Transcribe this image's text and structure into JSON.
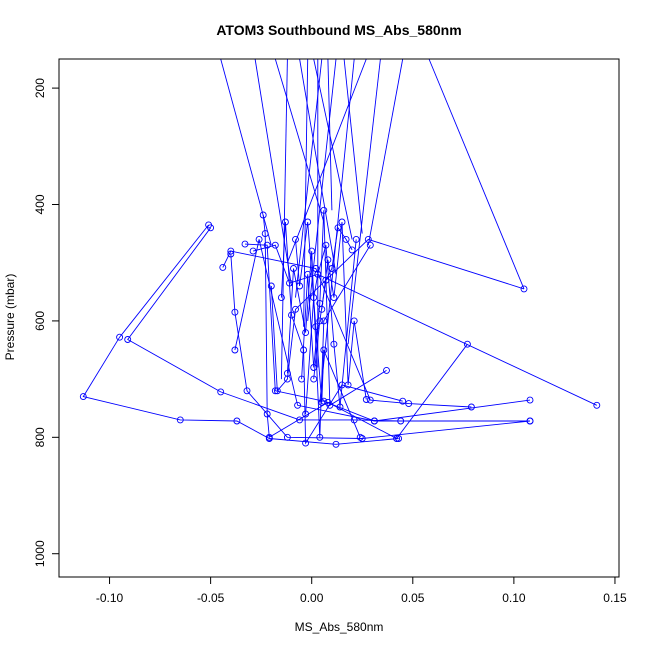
{
  "chart_data": {
    "type": "scatter",
    "title": "ATOM3 Southbound MS_Abs_580nm",
    "xlabel": "MS_Abs_580nm",
    "ylabel": "Pressure (mbar)",
    "xlim": [
      -0.125,
      0.152
    ],
    "ylim": [
      1040,
      150
    ],
    "y_reversed": true,
    "grid": false,
    "xticks": [
      -0.1,
      -0.05,
      0.0,
      0.05,
      0.1,
      0.15
    ],
    "xtick_labels": [
      "-0.10",
      "-0.05",
      "0.00",
      "0.05",
      "0.10",
      "0.15"
    ],
    "yticks": [
      200,
      400,
      600,
      800,
      1000
    ],
    "ytick_labels": [
      "200",
      "400",
      "600",
      "800",
      "1000"
    ],
    "color": "#0000ff",
    "series": [
      {
        "x": [
          -0.051,
          -0.095,
          -0.113,
          -0.065,
          -0.037,
          -0.021,
          0.012,
          0.043
        ],
        "y": [
          435,
          628,
          730,
          770,
          772,
          802,
          812,
          802
        ]
      },
      {
        "x": [
          -0.05,
          -0.091,
          -0.045,
          -0.006,
          0.021,
          0.044
        ],
        "y": [
          440,
          632,
          722,
          770,
          770,
          772
        ]
      },
      {
        "x": [
          -0.044,
          -0.04,
          0.002,
          0.029,
          0.048,
          0.079
        ],
        "y": [
          508,
          480,
          510,
          736,
          742,
          748
        ]
      },
      {
        "x": [
          -0.04,
          -0.038,
          -0.032,
          -0.012,
          0.025,
          0.108
        ],
        "y": [
          485,
          585,
          720,
          800,
          802,
          772
        ]
      },
      {
        "x": [
          -0.033,
          -0.022,
          -0.018,
          0.006,
          0.031,
          0.108
        ],
        "y": [
          468,
          470,
          720,
          738,
          772,
          772
        ]
      },
      {
        "x": [
          -0.038,
          -0.026,
          -0.007,
          0.031,
          0.108
        ],
        "y": [
          650,
          460,
          745,
          772,
          736
        ]
      },
      {
        "x": [
          -0.029,
          -0.018,
          -0.011,
          0.003,
          0.141
        ],
        "y": [
          480,
          470,
          535,
          520,
          745
        ]
      },
      {
        "x": [
          -0.024,
          -0.023,
          -0.022,
          -0.021,
          0.008,
          0.042,
          0.077
        ],
        "y": [
          418,
          450,
          760,
          800,
          740,
          802,
          640
        ]
      },
      {
        "x": [
          -0.02,
          -0.017,
          -0.012,
          -0.008,
          0.028,
          0.105
        ],
        "y": [
          540,
          720,
          700,
          580,
          460,
          545
        ]
      },
      {
        "x": [
          -0.015,
          -0.013,
          -0.01,
          -0.004,
          -0.003,
          0.015,
          0.045
        ],
        "y": [
          560,
          430,
          590,
          650,
          810,
          710,
          738
        ]
      },
      {
        "x": [
          -0.012,
          -0.009,
          -0.003,
          0.0,
          0.004,
          0.006,
          0.029
        ],
        "y": [
          690,
          510,
          620,
          480,
          800,
          600,
          470
        ]
      },
      {
        "x": [
          -0.008,
          -0.006,
          -0.002,
          0.002,
          0.005,
          0.006,
          0.024
        ],
        "y": [
          460,
          540,
          430,
          610,
          740,
          650,
          800
        ]
      },
      {
        "x": [
          -0.005,
          -0.002,
          0.001,
          0.004,
          0.006,
          0.009,
          0.037
        ],
        "y": [
          700,
          520,
          680,
          570,
          410,
          745,
          685
        ]
      },
      {
        "x": [
          -0.003,
          0.001,
          0.003,
          0.007,
          0.011,
          0.014,
          0.022
        ],
        "y": [
          760,
          560,
          520,
          470,
          640,
          748,
          460
        ]
      },
      {
        "x": [
          0.001,
          0.004,
          0.007,
          0.01,
          0.013,
          0.017,
          0.02
        ],
        "y": [
          700,
          600,
          530,
          510,
          440,
          460,
          478
        ]
      },
      {
        "x": [
          0.005,
          0.008,
          0.011,
          0.015,
          0.018,
          0.021,
          0.027
        ],
        "y": [
          580,
          495,
          560,
          430,
          710,
          600,
          735
        ]
      }
    ]
  }
}
